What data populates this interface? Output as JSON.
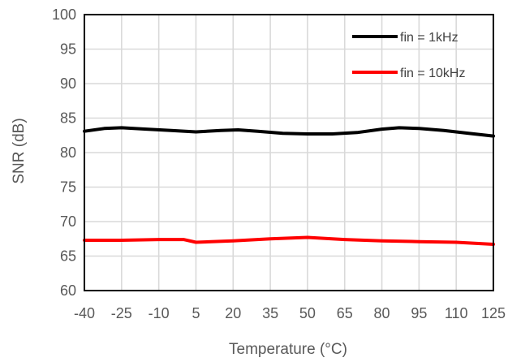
{
  "chart_data": {
    "type": "line",
    "title": "",
    "xlabel": "Temperature (°C)",
    "ylabel": "SNR (dB)",
    "xlim": [
      -40,
      125
    ],
    "ylim": [
      60,
      100
    ],
    "x_ticks": [
      -40,
      -25,
      -10,
      5,
      20,
      35,
      50,
      65,
      80,
      95,
      110,
      125
    ],
    "y_ticks": [
      60,
      65,
      70,
      75,
      80,
      85,
      90,
      95,
      100
    ],
    "grid": true,
    "legend_position": "top-right",
    "series": [
      {
        "name": "fin = 1kHz",
        "color": "#000000",
        "x": [
          -40,
          -32,
          -25,
          -15,
          -5,
          5,
          15,
          22,
          30,
          40,
          50,
          60,
          70,
          80,
          87,
          95,
          105,
          115,
          125
        ],
        "y": [
          83.1,
          83.5,
          83.6,
          83.4,
          83.2,
          83.0,
          83.2,
          83.3,
          83.1,
          82.8,
          82.7,
          82.7,
          82.9,
          83.4,
          83.6,
          83.5,
          83.2,
          82.8,
          82.4
        ]
      },
      {
        "name": "fin = 10kHz",
        "color": "#ff0000",
        "x": [
          -40,
          -25,
          -10,
          0,
          5,
          20,
          35,
          50,
          65,
          80,
          95,
          110,
          125
        ],
        "y": [
          67.3,
          67.3,
          67.4,
          67.4,
          67.0,
          67.2,
          67.5,
          67.7,
          67.4,
          67.2,
          67.1,
          67.0,
          66.7
        ]
      }
    ]
  }
}
